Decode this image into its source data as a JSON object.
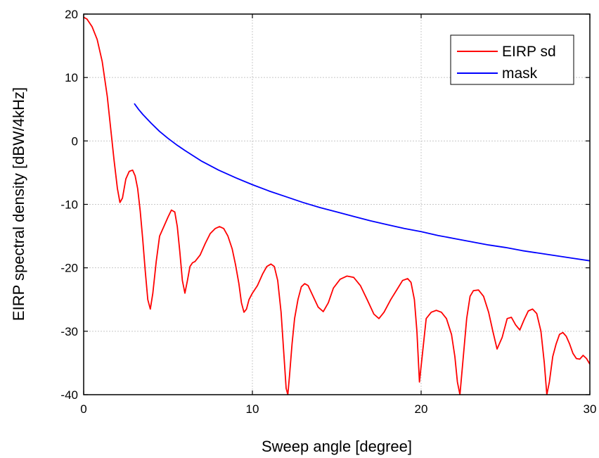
{
  "chart_data": {
    "type": "line",
    "title": "",
    "xlabel": "Sweep angle [degree]",
    "ylabel": "EIRP spectral density [dBW/4kHz]",
    "xlim": [
      0,
      30
    ],
    "ylim": [
      -40,
      20
    ],
    "xticks": [
      0,
      10,
      20,
      30
    ],
    "yticks": [
      -40,
      -30,
      -20,
      -10,
      0,
      10,
      20
    ],
    "grid": true,
    "legend_position": "top-right",
    "series": [
      {
        "name": "EIRP sd",
        "color": "#ff0000",
        "x": [
          0,
          0.2,
          0.5,
          0.8,
          1.1,
          1.4,
          1.6,
          1.8,
          2.0,
          2.15,
          2.3,
          2.5,
          2.7,
          2.9,
          3.05,
          3.2,
          3.35,
          3.5,
          3.65,
          3.8,
          3.95,
          4.1,
          4.3,
          4.5,
          4.75,
          5.0,
          5.2,
          5.4,
          5.55,
          5.7,
          5.85,
          6.0,
          6.15,
          6.3,
          6.45,
          6.6,
          6.9,
          7.2,
          7.5,
          7.8,
          8.05,
          8.3,
          8.55,
          8.8,
          9.0,
          9.2,
          9.35,
          9.5,
          9.65,
          9.8,
          10.0,
          10.3,
          10.6,
          10.85,
          11.1,
          11.3,
          11.5,
          11.7,
          11.85,
          12.0,
          12.1,
          12.2,
          12.35,
          12.5,
          12.7,
          12.9,
          13.1,
          13.3,
          13.6,
          13.9,
          14.2,
          14.5,
          14.8,
          15.2,
          15.6,
          16.0,
          16.4,
          16.8,
          17.2,
          17.5,
          17.8,
          18.2,
          18.6,
          18.9,
          19.2,
          19.4,
          19.6,
          19.75,
          19.9,
          20.1,
          20.3,
          20.6,
          20.9,
          21.2,
          21.5,
          21.8,
          22.0,
          22.15,
          22.3,
          22.5,
          22.7,
          22.9,
          23.1,
          23.4,
          23.7,
          24.0,
          24.25,
          24.5,
          24.8,
          25.1,
          25.35,
          25.6,
          25.85,
          26.1,
          26.35,
          26.6,
          26.85,
          27.1,
          27.3,
          27.45,
          27.6,
          27.8,
          28.0,
          28.2,
          28.4,
          28.6,
          28.8,
          29.0,
          29.2,
          29.4,
          29.6,
          29.8,
          30.0
        ],
        "y": [
          19.5,
          19.2,
          18.0,
          16.0,
          12.5,
          7.0,
          2.0,
          -3.0,
          -7.5,
          -9.7,
          -9.0,
          -6.0,
          -4.8,
          -4.6,
          -5.5,
          -7.5,
          -11.0,
          -15.5,
          -20.5,
          -25.0,
          -26.5,
          -24.0,
          -19.0,
          -15.0,
          -13.5,
          -12.0,
          -10.9,
          -11.2,
          -13.5,
          -17.5,
          -22.0,
          -24.0,
          -22.0,
          -19.8,
          -19.2,
          -19.0,
          -18.0,
          -16.2,
          -14.6,
          -13.8,
          -13.5,
          -13.8,
          -15.0,
          -17.0,
          -19.5,
          -22.5,
          -25.5,
          -27.0,
          -26.5,
          -25.0,
          -24.0,
          -22.8,
          -21.0,
          -19.8,
          -19.4,
          -19.8,
          -22.0,
          -27.0,
          -33.0,
          -39.0,
          -40.0,
          -37.0,
          -32.0,
          -28.0,
          -25.0,
          -23.0,
          -22.5,
          -22.8,
          -24.5,
          -26.2,
          -26.9,
          -25.5,
          -23.2,
          -21.8,
          -21.3,
          -21.5,
          -22.8,
          -25.0,
          -27.3,
          -28.0,
          -27.0,
          -25.0,
          -23.3,
          -22.0,
          -21.7,
          -22.3,
          -25.0,
          -30.0,
          -38.0,
          -33.0,
          -28.0,
          -27.0,
          -26.7,
          -27.0,
          -28.0,
          -30.5,
          -34.0,
          -38.0,
          -40.0,
          -34.0,
          -28.0,
          -24.5,
          -23.6,
          -23.5,
          -24.5,
          -27.0,
          -30.0,
          -32.8,
          -31.0,
          -28.0,
          -27.8,
          -29.0,
          -29.8,
          -28.2,
          -26.8,
          -26.5,
          -27.2,
          -30.0,
          -35.0,
          -40.0,
          -38.0,
          -34.0,
          -32.0,
          -30.5,
          -30.2,
          -30.8,
          -32.0,
          -33.5,
          -34.3,
          -34.4,
          -33.8,
          -34.3,
          -35.2
        ]
      },
      {
        "name": "mask",
        "color": "#0000ff",
        "x": [
          3,
          3.25,
          3.5,
          4,
          4.5,
          5,
          5.5,
          6,
          7,
          8,
          9,
          10,
          11,
          12,
          13,
          14,
          15,
          16,
          17,
          18,
          19,
          20,
          21,
          22,
          23,
          24,
          25,
          26,
          27,
          28,
          29,
          30
        ],
        "y": [
          5.9,
          5.0,
          4.2,
          2.8,
          1.5,
          0.4,
          -0.6,
          -1.5,
          -3.2,
          -4.6,
          -5.8,
          -6.9,
          -7.9,
          -8.8,
          -9.7,
          -10.5,
          -11.2,
          -11.9,
          -12.6,
          -13.2,
          -13.8,
          -14.3,
          -14.9,
          -15.4,
          -15.9,
          -16.4,
          -16.8,
          -17.3,
          -17.7,
          -18.1,
          -18.5,
          -18.9
        ]
      }
    ]
  }
}
